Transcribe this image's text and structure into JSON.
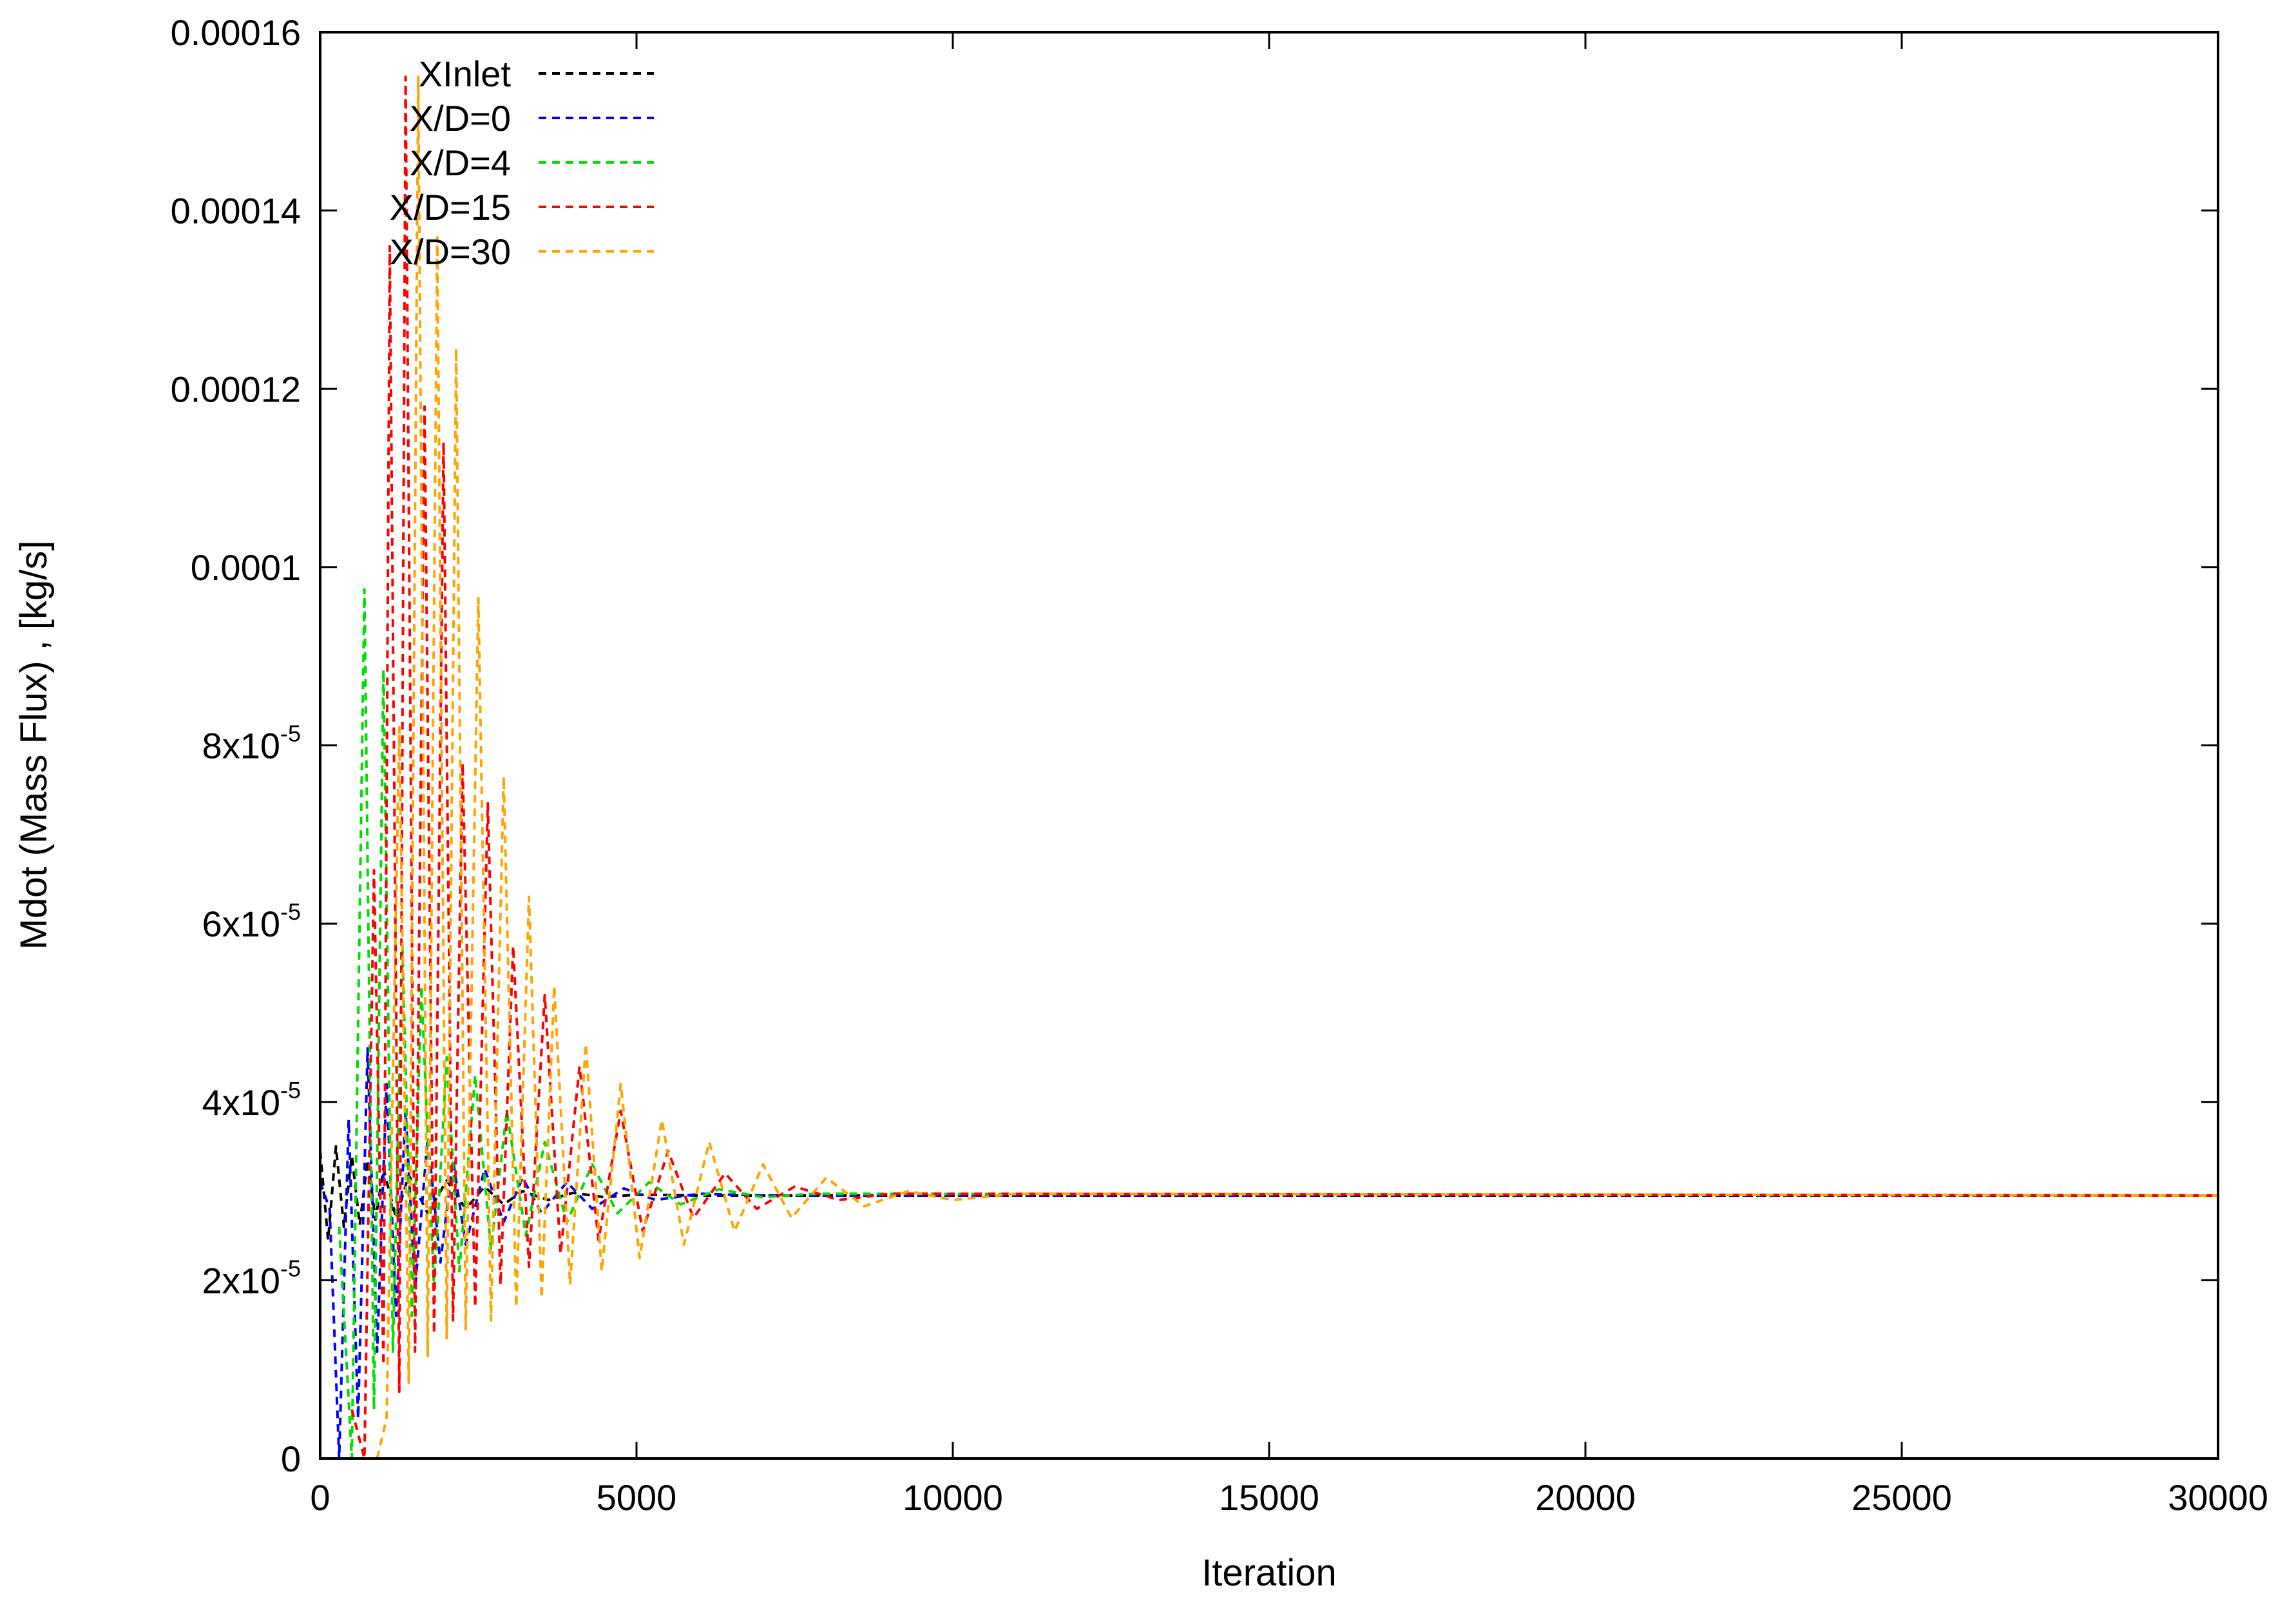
{
  "chart_data": {
    "type": "line",
    "title": "",
    "xlabel": "Iteration",
    "ylabel": "Mdot (Mass Flux) , [kg/s]",
    "xlim": [
      0,
      30000
    ],
    "ylim": [
      0,
      0.00016
    ],
    "grid": false,
    "legend_position": "top-left",
    "line_style": "dashed",
    "x_ticks": [
      {
        "value": 0,
        "label": "0"
      },
      {
        "value": 5000,
        "label": "5000"
      },
      {
        "value": 10000,
        "label": "10000"
      },
      {
        "value": 15000,
        "label": "15000"
      },
      {
        "value": 20000,
        "label": "20000"
      },
      {
        "value": 25000,
        "label": "25000"
      },
      {
        "value": 30000,
        "label": "30000"
      }
    ],
    "y_ticks": [
      {
        "value": 0,
        "base": "0",
        "exp": ""
      },
      {
        "value": 2e-05,
        "base": "2x10",
        "exp": "-5"
      },
      {
        "value": 4e-05,
        "base": "4x10",
        "exp": "-5"
      },
      {
        "value": 6e-05,
        "base": "6x10",
        "exp": "-5"
      },
      {
        "value": 8e-05,
        "base": "8x10",
        "exp": "-5"
      },
      {
        "value": 0.0001,
        "base": "0.0001",
        "exp": ""
      },
      {
        "value": 0.00012,
        "base": "0.00012",
        "exp": ""
      },
      {
        "value": 0.00014,
        "base": "0.00014",
        "exp": ""
      },
      {
        "value": 0.00016,
        "base": "0.00016",
        "exp": ""
      }
    ],
    "steady_value": 2.95e-05,
    "series": [
      {
        "name": "XInlet",
        "color": "#000000",
        "points": [
          [
            0,
            3.45e-05
          ],
          [
            125,
            2.45e-05
          ],
          [
            250,
            3.5e-05
          ],
          [
            375,
            2.6e-05
          ],
          [
            500,
            3.4e-05
          ],
          [
            625,
            2.62e-05
          ],
          [
            750,
            3.35e-05
          ],
          [
            875,
            2.68e-05
          ],
          [
            1000,
            3.25e-05
          ],
          [
            1200,
            2.7e-05
          ],
          [
            1400,
            3.18e-05
          ],
          [
            1700,
            2.75e-05
          ],
          [
            2000,
            3.12e-05
          ],
          [
            2300,
            2.8e-05
          ],
          [
            2600,
            3.05e-05
          ],
          [
            2900,
            2.85e-05
          ],
          [
            3200,
            3e-05
          ],
          [
            3600,
            2.9e-05
          ],
          [
            4000,
            2.98e-05
          ],
          [
            4500,
            2.93e-05
          ],
          [
            5000,
            2.96e-05
          ],
          [
            6000,
            2.95e-05
          ],
          [
            30000,
            2.95e-05
          ]
        ]
      },
      {
        "name": "X/D=0",
        "color": "#0000ff",
        "points": [
          [
            0,
            3.1e-05
          ],
          [
            150,
            2.8e-05
          ],
          [
            300,
            0
          ],
          [
            450,
            3.8e-05
          ],
          [
            600,
            4.5e-06
          ],
          [
            750,
            4.6e-05
          ],
          [
            900,
            1.2e-05
          ],
          [
            1050,
            4.2e-05
          ],
          [
            1200,
            1.6e-05
          ],
          [
            1350,
            3.9e-05
          ],
          [
            1500,
            1.9e-05
          ],
          [
            1700,
            3.6e-05
          ],
          [
            1900,
            2.2e-05
          ],
          [
            2100,
            3.35e-05
          ],
          [
            2300,
            2.4e-05
          ],
          [
            2600,
            3.25e-05
          ],
          [
            2900,
            2.65e-05
          ],
          [
            3200,
            3.15e-05
          ],
          [
            3500,
            2.75e-05
          ],
          [
            3900,
            3.1e-05
          ],
          [
            4300,
            2.8e-05
          ],
          [
            4800,
            3.03e-05
          ],
          [
            5300,
            2.9e-05
          ],
          [
            6000,
            2.97e-05
          ],
          [
            7000,
            2.95e-05
          ],
          [
            30000,
            2.95e-05
          ]
        ]
      },
      {
        "name": "X/D=4",
        "color": "#00dd00",
        "points": [
          [
            300,
            2.6e-05
          ],
          [
            500,
            0
          ],
          [
            700,
            9.75e-05
          ],
          [
            850,
            5.5e-06
          ],
          [
            1000,
            8.85e-05
          ],
          [
            1150,
            1.2e-05
          ],
          [
            1300,
            5.75e-05
          ],
          [
            1450,
            1.6e-05
          ],
          [
            1600,
            5.3e-05
          ],
          [
            1800,
            1.9e-05
          ],
          [
            2000,
            4.5e-05
          ],
          [
            2200,
            2.1e-05
          ],
          [
            2450,
            4.3e-05
          ],
          [
            2700,
            2.35e-05
          ],
          [
            2950,
            3.9e-05
          ],
          [
            3250,
            2.5e-05
          ],
          [
            3550,
            3.55e-05
          ],
          [
            3900,
            2.65e-05
          ],
          [
            4300,
            3.3e-05
          ],
          [
            4700,
            2.75e-05
          ],
          [
            5200,
            3.1e-05
          ],
          [
            5700,
            2.85e-05
          ],
          [
            6300,
            3.02e-05
          ],
          [
            7000,
            2.93e-05
          ],
          [
            7800,
            2.97e-05
          ],
          [
            30000,
            2.95e-05
          ]
        ]
      },
      {
        "name": "X/D=15",
        "color": "#ff0000",
        "points": [
          [
            500,
            5.5e-06
          ],
          [
            700,
            0
          ],
          [
            850,
            6.6e-05
          ],
          [
            1000,
            1.05e-05
          ],
          [
            1100,
            0.000136
          ],
          [
            1250,
            7.5e-06
          ],
          [
            1350,
            0.000155
          ],
          [
            1500,
            1.2e-05
          ],
          [
            1650,
            0.000118
          ],
          [
            1800,
            1.4e-05
          ],
          [
            1950,
            0.000114
          ],
          [
            2100,
            1.55e-05
          ],
          [
            2250,
            7.8e-05
          ],
          [
            2450,
            1.7e-05
          ],
          [
            2650,
            7.35e-05
          ],
          [
            2850,
            1.95e-05
          ],
          [
            3050,
            5.75e-05
          ],
          [
            3300,
            2.15e-05
          ],
          [
            3550,
            5.2e-05
          ],
          [
            3800,
            2.3e-05
          ],
          [
            4100,
            4.4e-05
          ],
          [
            4400,
            2.45e-05
          ],
          [
            4750,
            3.9e-05
          ],
          [
            5100,
            2.55e-05
          ],
          [
            5500,
            3.45e-05
          ],
          [
            5900,
            2.7e-05
          ],
          [
            6400,
            3.2e-05
          ],
          [
            6900,
            2.8e-05
          ],
          [
            7500,
            3.05e-05
          ],
          [
            8200,
            2.9e-05
          ],
          [
            9000,
            2.97e-05
          ],
          [
            30000,
            2.95e-05
          ]
        ]
      },
      {
        "name": "X/D=30",
        "color": "#ffa500",
        "points": [
          [
            900,
            0
          ],
          [
            1050,
            4.5e-06
          ],
          [
            1250,
            8.2e-05
          ],
          [
            1400,
            8.5e-06
          ],
          [
            1550,
            0.000155
          ],
          [
            1700,
            1.15e-05
          ],
          [
            1850,
            0.000137
          ],
          [
            2000,
            1.35e-05
          ],
          [
            2150,
            0.0001245
          ],
          [
            2300,
            1.45e-05
          ],
          [
            2500,
            9.65e-05
          ],
          [
            2700,
            1.55e-05
          ],
          [
            2900,
            7.65e-05
          ],
          [
            3100,
            1.7e-05
          ],
          [
            3300,
            6.3e-05
          ],
          [
            3500,
            1.8e-05
          ],
          [
            3700,
            5.3e-05
          ],
          [
            3950,
            1.95e-05
          ],
          [
            4200,
            4.65e-05
          ],
          [
            4450,
            2.1e-05
          ],
          [
            4750,
            4.2e-05
          ],
          [
            5050,
            2.25e-05
          ],
          [
            5400,
            3.8e-05
          ],
          [
            5750,
            2.4e-05
          ],
          [
            6150,
            3.55e-05
          ],
          [
            6550,
            2.55e-05
          ],
          [
            7000,
            3.3e-05
          ],
          [
            7450,
            2.7e-05
          ],
          [
            8000,
            3.15e-05
          ],
          [
            8600,
            2.83e-05
          ],
          [
            9300,
            3e-05
          ],
          [
            10000,
            2.9e-05
          ],
          [
            11000,
            2.97e-05
          ],
          [
            30000,
            2.95e-05
          ]
        ]
      }
    ]
  }
}
